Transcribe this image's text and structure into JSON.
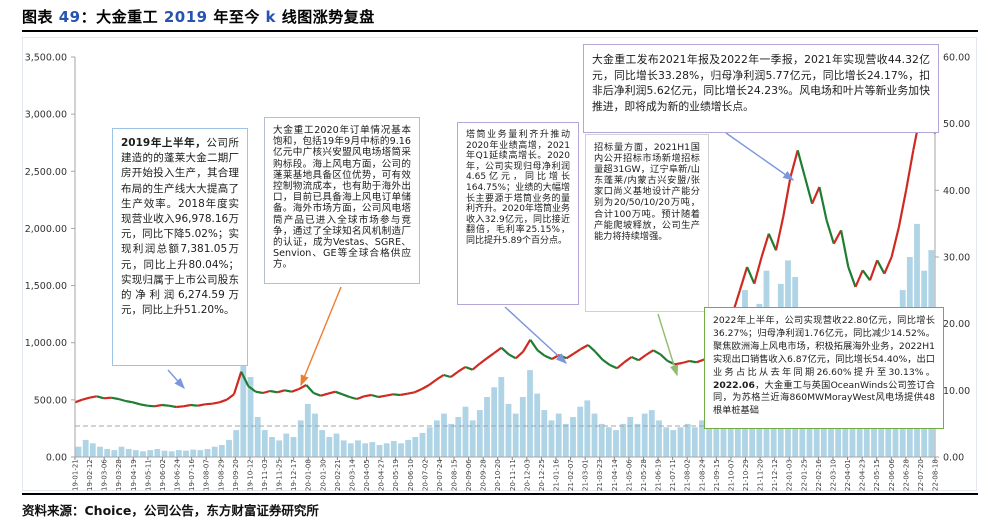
{
  "header": {
    "title_parts": [
      {
        "text": "图表 ",
        "accent": false
      },
      {
        "text": "49",
        "accent": true
      },
      {
        "text": "：大金重工 ",
        "accent": false
      },
      {
        "text": "2019",
        "accent": true
      },
      {
        "text": " 年至今 ",
        "accent": false
      },
      {
        "text": "k",
        "accent": true
      },
      {
        "text": " 线图涨势复盘",
        "accent": false
      }
    ]
  },
  "footer": {
    "source": "资料来源：Choice，公司公告，东方财富证券研究所"
  },
  "colors": {
    "up_candle": "#cf2a21",
    "down_candle": "#1e7d32",
    "volume_bar": "#aed4e5",
    "axis": "#a6a6a6",
    "tick_text": "#333333",
    "reference_line": "#a0a4aa",
    "arrow_blue": "#7b96dd",
    "arrow_orange": "#ed7d31",
    "arrow_green": "#8fbc6f",
    "callout_blue_border": "#9dc3e6",
    "callout_purple_border": "#b4a7d6",
    "callout_gray_border": "#cdd0d6",
    "callout_green_border": "#70ad47",
    "title_accent": "#2853b0"
  },
  "callouts": {
    "c1": {
      "lead": "2019年上半年，",
      "body": "公司所建造的的蓬莱大金二期厂房开始投入生产，其合理布局的生产线大大提高了生产效率。2018年度实现营业收入96,978.16万元，同比下降5.02%；实现利润总额7,381.05万元，同比上升80.04%；实现归属于上市公司股东的净利润6,274.59万元，同比上升51.20%。"
    },
    "c2": {
      "body": "大金重工2020年订单情况基本饱和，包括19年9月中标的9.16亿元中广核兴安盟风电场塔筒采购标段。海上风电方面，公司的蓬莱基地具备区位优势，可有效控制物流成本，也有助于海外出口，目前已具备海上风电订单储备。海外市场方面，公司风电塔筒产品已进入全球市场参与竞争，通过了全球知名风机制造厂的认证，成为Vestas、SGRE、Senvion、GE等全球合格供应方。"
    },
    "c3": {
      "body": "塔筒业务量利齐升推动2020年业绩高增，2021年Q1延续高增长。2020年，公司实现归母净利润4.65亿元，同比增长164.75%；业绩的大幅增长主要源于塔筒业务的量利齐升。2020年塔筒业务收入32.9亿元，同比接近翻倍，毛利率25.15%，同比提升5.89个百分点。"
    },
    "c4": {
      "body": "招标量方面，2021H1国内公开招标市场新增招标量超31GW，辽宁阜新/山东蓬莱/内蒙古兴安盟/张家口尚义基地设计产能分别为20/50/10/20万吨，合计100万吨。预计随着产能爬坡释放，公司生产能力将持续增强。"
    },
    "c5": {
      "body": "大金重工发布2021年报及2022年一季报，2021年实现营收44.32亿元，同比增长33.28%，归母净利润5.77亿元，同比增长24.17%，扣非后净利润5.62亿元，同比增长24.23%。风电场和叶片等新业务加快推进，即将成为新的业绩增长点。"
    },
    "c6": {
      "pre": "2022年上半年，公司实现营收22.80亿元，同比增长36.27%；归母净利润1.76亿元，同比减少14.52%。聚焦欧洲海上风电市场，积极拓展海外业务，2022H1实现出口销售收入6.87亿元，同比增长54.40%，出口业务占比从去年同期26.60%提升至30.13%。",
      "bold": "2022.06",
      "post": "，大金重工与英国OceanWinds公司签订合同，为苏格兰近海860MWMorayWest风电场提供48根单桩基础"
    }
  },
  "chart_data": {
    "type": "candlestick",
    "legend": "红涨绿跌K线(右轴)与成交量(左轴)",
    "left_axis": {
      "min": 0,
      "max": 3500,
      "ticks": [
        "3,500.00",
        "3,000.00",
        "2,500.00",
        "2,000.00",
        "1,500.00",
        "1,000.00",
        "500.00",
        "0.00"
      ]
    },
    "right_axis": {
      "min": 0,
      "max": 60,
      "ticks": [
        "60.00",
        "50.00",
        "40.00",
        "30.00",
        "20.00",
        "10.00",
        "0.00"
      ]
    },
    "x_ticks": [
      "19-01-21",
      "19-02-12",
      "19-03-06",
      "19-03-28",
      "19-04-19",
      "19-05-11",
      "19-06-02",
      "19-06-24",
      "19-07-16",
      "19-08-07",
      "19-08-29",
      "19-09-20",
      "19-10-12",
      "19-11-03",
      "19-11-25",
      "19-12-17",
      "20-01-08",
      "20-01-30",
      "20-02-21",
      "20-03-14",
      "20-04-05",
      "20-04-27",
      "20-05-19",
      "20-06-10",
      "20-07-02",
      "20-07-24",
      "20-08-15",
      "20-09-06",
      "20-09-28",
      "20-10-20",
      "20-11-11",
      "20-12-03",
      "20-12-25",
      "21-01-16",
      "21-02-07",
      "21-03-01",
      "21-03-23",
      "21-04-14",
      "21-05-06",
      "21-05-28",
      "21-06-19",
      "21-07-11",
      "21-08-02",
      "21-08-24",
      "21-09-15",
      "21-10-07",
      "21-10-29",
      "21-11-20",
      "21-12-12",
      "22-01-03",
      "22-01-25",
      "22-02-16",
      "22-03-10",
      "22-04-01",
      "22-04-23",
      "22-05-15",
      "22-06-06",
      "22-06-28",
      "22-07-20",
      "22-08-18"
    ],
    "series": [
      {
        "name": "price",
        "axis": "right",
        "values": [
          8.2,
          8.6,
          8.9,
          9.1,
          8.8,
          8.9,
          8.7,
          8.4,
          8.2,
          7.9,
          7.7,
          7.6,
          7.8,
          7.7,
          7.5,
          7.6,
          7.8,
          7.7,
          7.9,
          8.0,
          8.2,
          8.6,
          9.4,
          12.8,
          10.6,
          9.8,
          9.6,
          9.9,
          9.7,
          10.0,
          9.8,
          10.2,
          10.8,
          9.6,
          9.2,
          9.5,
          9.8,
          9.4,
          9.0,
          8.7,
          9.1,
          9.3,
          9.0,
          9.2,
          9.4,
          9.3,
          9.5,
          9.7,
          10.2,
          10.8,
          11.6,
          12.3,
          12.0,
          12.8,
          13.5,
          13.1,
          14.0,
          14.8,
          15.6,
          16.4,
          15.4,
          14.8,
          15.8,
          17.6,
          16.0,
          15.2,
          14.7,
          15.3,
          14.8,
          15.5,
          16.2,
          16.8,
          15.8,
          14.6,
          13.8,
          13.3,
          14.2,
          15.0,
          14.5,
          15.3,
          16.0,
          15.4,
          14.4,
          13.9,
          14.1,
          14.4,
          14.2,
          14.6,
          15.2,
          16.5,
          18.5,
          21.5,
          25.0,
          28.5,
          26.0,
          30.0,
          33.5,
          31.0,
          36.0,
          42.0,
          46.0,
          42.0,
          38.0,
          40.5,
          35.5,
          32.0,
          34.0,
          28.5,
          25.5,
          28.0,
          26.5,
          29.5,
          27.5,
          30.0,
          34.5,
          40.0,
          46.0,
          51.5,
          55.0,
          48.5
        ]
      },
      {
        "name": "volume",
        "axis": "left",
        "values": [
          90,
          150,
          120,
          90,
          70,
          60,
          90,
          70,
          60,
          50,
          60,
          70,
          55,
          50,
          60,
          55,
          65,
          60,
          70,
          90,
          105,
          150,
          235,
          1020,
          700,
          350,
          235,
          175,
          145,
          205,
          175,
          320,
          465,
          380,
          235,
          175,
          205,
          145,
          120,
          145,
          120,
          130,
          105,
          120,
          140,
          120,
          150,
          175,
          210,
          260,
          320,
          380,
          290,
          350,
          440,
          320,
          410,
          525,
          610,
          700,
          465,
          380,
          525,
          760,
          555,
          410,
          320,
          380,
          290,
          350,
          440,
          495,
          380,
          290,
          260,
          235,
          290,
          350,
          290,
          380,
          410,
          320,
          260,
          235,
          260,
          290,
          260,
          320,
          410,
          555,
          760,
          990,
          1225,
          1460,
          1110,
          1340,
          1630,
          1285,
          1515,
          1720,
          1575,
          1285,
          1050,
          1165,
          935,
          815,
          960,
          760,
          640,
          790,
          670,
          815,
          730,
          935,
          1165,
          1460,
          1750,
          2040,
          1630,
          1810
        ]
      }
    ],
    "reference_line": {
      "axis": "right",
      "value": 4.65,
      "style": "dashed"
    }
  }
}
